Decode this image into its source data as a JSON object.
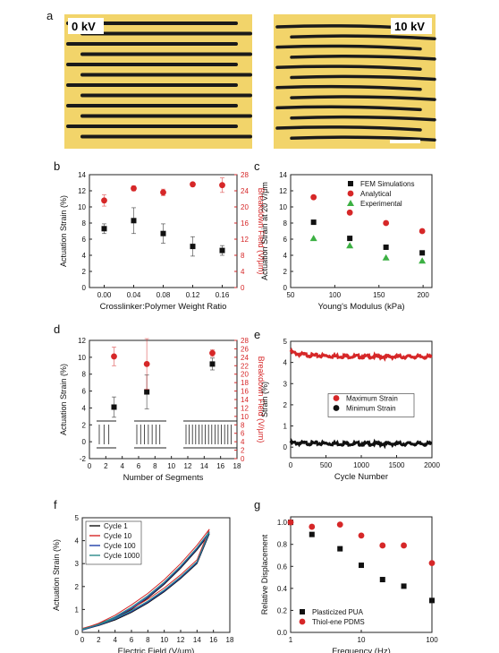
{
  "panel_labels": [
    "a",
    "b",
    "c",
    "d",
    "e",
    "f",
    "g"
  ],
  "photos": {
    "left_label": "0 kV",
    "right_label": "10 kV",
    "colors": {
      "background": "#f2d46a",
      "stripe": "#1a1a1a",
      "scale_bar": "#ffffff"
    }
  },
  "chart_data": [
    {
      "id": "b",
      "type": "scatter",
      "xlabel": "Crosslinker:Polymer Weight Ratio",
      "ylabel": "Actuation Strain (%)",
      "y2label": "Breakdown Field (V/μm)",
      "xlim": [
        -0.02,
        0.18
      ],
      "ylim": [
        0,
        14
      ],
      "y2lim": [
        0,
        28
      ],
      "xticks": [
        "0.00",
        "0.04",
        "0.08",
        "0.12",
        "0.16"
      ],
      "xtick_values": [
        0,
        0.04,
        0.08,
        0.12,
        0.16
      ],
      "yticks": [
        "0",
        "2",
        "4",
        "6",
        "8",
        "10",
        "12",
        "14"
      ],
      "y2ticks": [
        "0",
        "4",
        "8",
        "12",
        "16",
        "20",
        "24",
        "28"
      ],
      "series": [
        {
          "axis": "left",
          "color": "#111111",
          "marker": "square",
          "x": [
            0,
            0.04,
            0.08,
            0.12,
            0.16
          ],
          "values": [
            7.3,
            8.3,
            6.7,
            5.1,
            4.6
          ],
          "err": [
            0.6,
            1.6,
            1.2,
            1.2,
            0.6
          ]
        },
        {
          "axis": "right",
          "color": "#d62728",
          "marker": "circle",
          "x": [
            0,
            0.04,
            0.08,
            0.12,
            0.16
          ],
          "values": [
            21.6,
            24.6,
            23.6,
            25.6,
            25.4
          ],
          "err": [
            1.4,
            0.6,
            0.8,
            0.4,
            1.8
          ]
        }
      ]
    },
    {
      "id": "c",
      "type": "scatter",
      "xlabel": "Young's Modulus (kPa)",
      "ylabel": "Actuation Strain at 20 V/μm",
      "xlim": [
        50,
        210
      ],
      "ylim": [
        0,
        14
      ],
      "xticks": [
        "50",
        "100",
        "150",
        "200"
      ],
      "xtick_values": [
        50,
        100,
        150,
        200
      ],
      "yticks": [
        "0",
        "2",
        "4",
        "6",
        "8",
        "10",
        "12",
        "14"
      ],
      "legend_position": "top-right",
      "series": [
        {
          "name": "FEM Simulations",
          "color": "#111111",
          "marker": "square",
          "x": [
            76,
            117,
            158,
            199
          ],
          "values": [
            8.1,
            6.1,
            5.0,
            4.3
          ]
        },
        {
          "name": "Analytical",
          "color": "#d62728",
          "marker": "circle",
          "x": [
            76,
            117,
            158,
            199
          ],
          "values": [
            11.2,
            9.3,
            8.0,
            7.0
          ]
        },
        {
          "name": "Experimental",
          "color": "#3cb043",
          "marker": "triangle",
          "x": [
            76,
            117,
            158,
            199
          ],
          "values": [
            6.1,
            5.2,
            3.7,
            3.3
          ]
        }
      ]
    },
    {
      "id": "d",
      "type": "scatter",
      "xlabel": "Number of Segments",
      "ylabel": "Actuation Strain (%)",
      "y2label": "Breakdown Field (V/μm)",
      "xlim": [
        0,
        18
      ],
      "ylim": [
        -2,
        12
      ],
      "y2lim": [
        0,
        28
      ],
      "xticks": [
        "0",
        "2",
        "4",
        "6",
        "8",
        "10",
        "12",
        "14",
        "16",
        "18"
      ],
      "xtick_values": [
        0,
        2,
        4,
        6,
        8,
        10,
        12,
        14,
        16,
        18
      ],
      "yticks": [
        "-2",
        "0",
        "2",
        "4",
        "6",
        "8",
        "10",
        "12"
      ],
      "y2ticks": [
        "0",
        "2",
        "4",
        "6",
        "8",
        "10",
        "12",
        "14",
        "16",
        "18",
        "20",
        "22",
        "24",
        "26",
        "28"
      ],
      "series": [
        {
          "axis": "left",
          "color": "#111111",
          "marker": "square",
          "x": [
            3,
            7,
            15
          ],
          "values": [
            4.1,
            5.9,
            9.2
          ],
          "err": [
            1.2,
            2.0,
            0.7
          ]
        },
        {
          "axis": "right",
          "color": "#d62728",
          "marker": "circle",
          "x": [
            3,
            7,
            15
          ],
          "values": [
            24.2,
            22.4,
            25.0
          ],
          "err": [
            2.2,
            6.0,
            0.8
          ]
        }
      ]
    },
    {
      "id": "e",
      "type": "line",
      "xlabel": "Cycle Number",
      "ylabel": "Strain (%)",
      "xlim": [
        0,
        2000
      ],
      "ylim": [
        -0.5,
        5
      ],
      "xticks": [
        "0",
        "500",
        "1000",
        "1500",
        "2000"
      ],
      "xtick_values": [
        0,
        500,
        1000,
        1500,
        2000
      ],
      "yticks": [
        "0",
        "1",
        "2",
        "3",
        "4",
        "5"
      ],
      "legend_position": "center-right",
      "series": [
        {
          "name": "Maximum Strain",
          "color": "#d62728",
          "x": [
            0,
            100,
            300,
            600,
            1000,
            1500,
            2000
          ],
          "values": [
            4.5,
            4.4,
            4.33,
            4.3,
            4.28,
            4.27,
            4.27
          ]
        },
        {
          "name": "Minimum Strain",
          "color": "#111111",
          "x": [
            0,
            100,
            300,
            600,
            1000,
            1500,
            2000
          ],
          "values": [
            0.2,
            0.19,
            0.18,
            0.17,
            0.16,
            0.16,
            0.16
          ]
        }
      ]
    },
    {
      "id": "f",
      "type": "line",
      "xlabel": "Electric Field (V/μm)",
      "ylabel": "Actuation Strain (%)",
      "xlim": [
        0,
        18
      ],
      "ylim": [
        0,
        5
      ],
      "xticks": [
        "0",
        "2",
        "4",
        "6",
        "8",
        "10",
        "12",
        "14",
        "16",
        "18"
      ],
      "xtick_values": [
        0,
        2,
        4,
        6,
        8,
        10,
        12,
        14,
        16,
        18
      ],
      "yticks": [
        "0",
        "1",
        "2",
        "3",
        "4",
        "5"
      ],
      "legend_position": "top-left",
      "series": [
        {
          "name": "Cycle 1",
          "color": "#111111",
          "x": [
            0,
            2,
            4,
            6,
            8,
            10,
            12,
            14,
            15.5
          ],
          "values": [
            0.1,
            0.3,
            0.6,
            1.0,
            1.5,
            2.1,
            2.8,
            3.6,
            4.3
          ]
        },
        {
          "name": "Cycle 10",
          "color": "#d62728",
          "x": [
            0,
            2,
            4,
            6,
            8,
            10,
            12,
            14,
            15.5
          ],
          "values": [
            0.15,
            0.4,
            0.75,
            1.2,
            1.7,
            2.3,
            3.0,
            3.8,
            4.5
          ]
        },
        {
          "name": "Cycle 100",
          "color": "#1f3fa8",
          "x": [
            0,
            2,
            4,
            6,
            8,
            10,
            12,
            14,
            15.5
          ],
          "values": [
            0.1,
            0.32,
            0.65,
            1.05,
            1.55,
            2.15,
            2.85,
            3.65,
            4.35
          ]
        },
        {
          "name": "Cycle 1000",
          "color": "#2a8a8a",
          "x": [
            0,
            2,
            4,
            6,
            8,
            10,
            12,
            14,
            15.5
          ],
          "values": [
            0.12,
            0.35,
            0.68,
            1.1,
            1.6,
            2.2,
            2.9,
            3.7,
            4.4
          ]
        }
      ]
    },
    {
      "id": "g",
      "type": "scatter",
      "xlabel": "Frequency (Hz)",
      "ylabel": "Relative Displacement",
      "xscale": "log",
      "xlim": [
        1,
        100
      ],
      "ylim": [
        0,
        1.05
      ],
      "xticks": [
        "1",
        "10",
        "100"
      ],
      "xtick_values": [
        1,
        10,
        100
      ],
      "yticks": [
        "0.0",
        "0.2",
        "0.4",
        "0.6",
        "0.8",
        "1.0"
      ],
      "legend_position": "bottom-left",
      "series": [
        {
          "name": "Plasticized PUA",
          "color": "#111111",
          "marker": "square",
          "x": [
            1,
            2,
            5,
            10,
            20,
            40,
            100
          ],
          "values": [
            1.0,
            0.89,
            0.76,
            0.61,
            0.48,
            0.42,
            0.29
          ]
        },
        {
          "name": "Thiol-ene PDMS",
          "color": "#d62728",
          "marker": "circle",
          "x": [
            1,
            2,
            5,
            10,
            20,
            40,
            100
          ],
          "values": [
            1.0,
            0.96,
            0.98,
            0.88,
            0.79,
            0.79,
            0.63
          ]
        }
      ]
    }
  ]
}
